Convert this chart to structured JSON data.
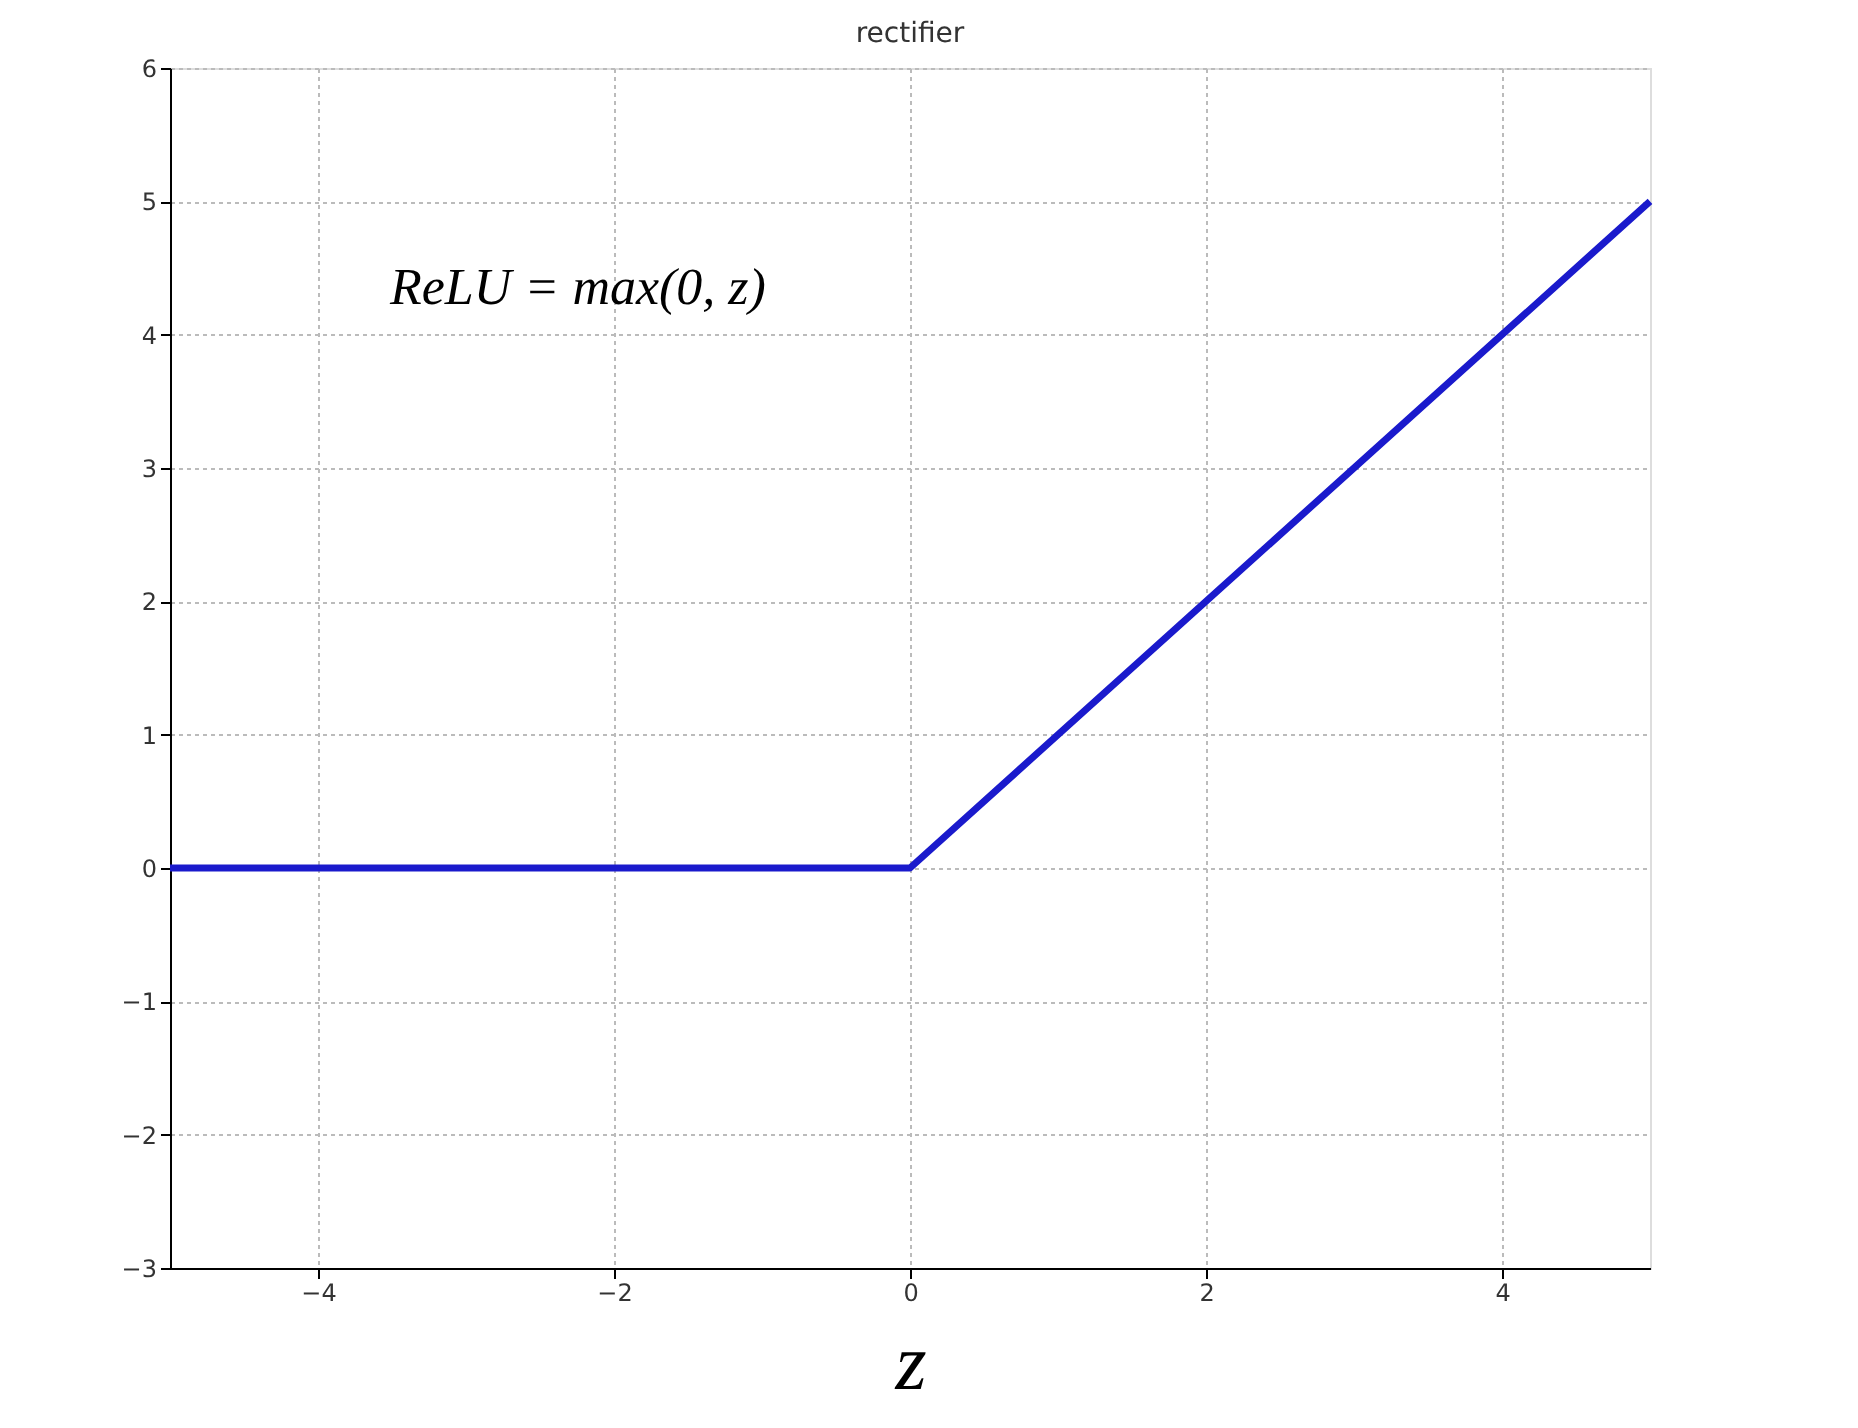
{
  "chart_data": {
    "type": "line",
    "title": "rectifier",
    "xlabel": "z",
    "annotations": [
      "ReLU = max(0, z)"
    ],
    "x": [
      -5,
      0,
      5
    ],
    "series": [
      {
        "color": "#1a1acc",
        "values": [
          0,
          0,
          5
        ]
      }
    ],
    "xlim": [
      -5,
      5
    ],
    "xticks": [
      -4,
      -2,
      0,
      2,
      4
    ],
    "ylim": [
      -3,
      6
    ],
    "yticks": [
      -3,
      -2,
      -1,
      0,
      1,
      2,
      3,
      4,
      5,
      6
    ],
    "grid": true,
    "marker": "none",
    "line_style": "solid"
  }
}
